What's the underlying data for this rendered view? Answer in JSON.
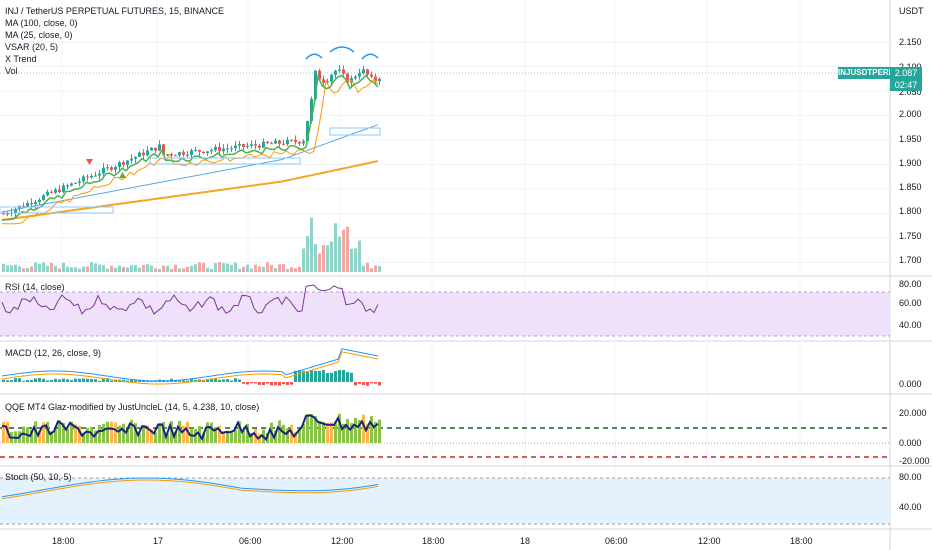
{
  "header": {
    "symbol_title": "INJ / TetherUS PERPETUAL FUTURES, 15, BINANCE",
    "indicators": [
      "MA (100, close, 0)",
      "MA (25, close, 0)",
      "VSAR (20, 5)",
      "X Trend",
      "Vol"
    ],
    "currency": "USDT"
  },
  "price_panel": {
    "ticks": [
      "2.150",
      "2.100",
      "2.050",
      "2.000",
      "1.950",
      "1.900",
      "1.850",
      "1.800",
      "1.750",
      "1.700"
    ],
    "symbol_badge": "INJUSDTPERP",
    "last_price": "2.087",
    "countdown": "02:47"
  },
  "rsi_panel": {
    "label": "RSI (14, close)",
    "ticks": [
      "80.00",
      "60.00",
      "40.00"
    ]
  },
  "macd_panel": {
    "label": "MACD (12, 26, close, 9)",
    "ticks": [
      "0.000"
    ]
  },
  "qqe_panel": {
    "label": "QQE MT4 Glaz-modified by JustUncleL (14, 5, 4.238, 10, close)",
    "ticks": [
      "20.000",
      "0.000",
      "-20.000"
    ]
  },
  "stoch_panel": {
    "label": "Stoch (50, 10, 5)",
    "ticks": [
      "80.00",
      "40.00"
    ]
  },
  "time_axis": [
    "18:00",
    "17",
    "06:00",
    "12:00",
    "18:00",
    "18",
    "06:00",
    "12:00",
    "18:00"
  ],
  "colors": {
    "up": "#26a69a",
    "down": "#ef5350",
    "ma100": "#f5a623",
    "ma25": "#5aa9e6",
    "trend_green": "#4caf50",
    "trend_orange": "#ff9800",
    "rsi": "#7e3794",
    "rsi_band": "#f0e1fb",
    "stoch_band": "#e3f2fd",
    "qqe_bar": "#8bc34a",
    "qqe_line": "#1a237e"
  }
}
